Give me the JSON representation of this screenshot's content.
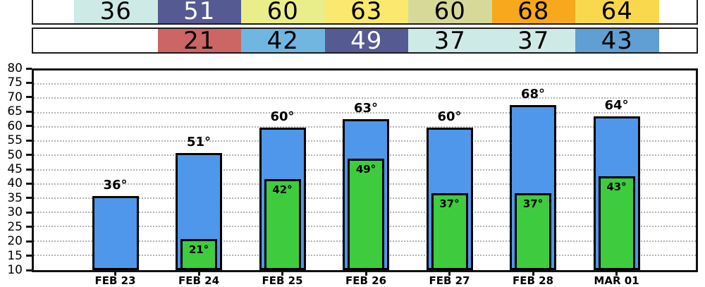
{
  "palette": {
    "high_bar_fill": "#4f97ea",
    "low_bar_fill": "#3ecc3e",
    "bar_border": "#000000",
    "gridline": "#b3b3b3",
    "frame": "#111111"
  },
  "strips": {
    "high": {
      "label": "daily-high-temperatures",
      "start_day": 0,
      "cells": [
        {
          "value": "36",
          "bg": "#cdeae6",
          "fg": "#000000"
        },
        {
          "value": "51",
          "bg": "#565a93",
          "fg": "#ffffff"
        },
        {
          "value": "60",
          "bg": "#e9ee8a",
          "fg": "#000000"
        },
        {
          "value": "63",
          "bg": "#fae96e",
          "fg": "#000000"
        },
        {
          "value": "60",
          "bg": "#d6d998",
          "fg": "#000000"
        },
        {
          "value": "68",
          "bg": "#f8a81c",
          "fg": "#000000"
        },
        {
          "value": "64",
          "bg": "#f9d84e",
          "fg": "#000000"
        }
      ]
    },
    "low": {
      "label": "daily-low-temperatures",
      "start_day": 1,
      "cells": [
        {
          "value": "21",
          "bg": "#cb6665",
          "fg": "#000000"
        },
        {
          "value": "42",
          "bg": "#6fb6e1",
          "fg": "#000000"
        },
        {
          "value": "49",
          "bg": "#565a93",
          "fg": "#ffffff"
        },
        {
          "value": "37",
          "bg": "#cdeae6",
          "fg": "#000000"
        },
        {
          "value": "37",
          "bg": "#cdeae6",
          "fg": "#000000"
        },
        {
          "value": "43",
          "bg": "#5f9fd3",
          "fg": "#000000"
        }
      ]
    }
  },
  "chart_data": {
    "type": "bar",
    "categories": [
      "FEB 23",
      "FEB 24",
      "FEB 25",
      "FEB 26",
      "FEB 27",
      "FEB 28",
      "MAR 01"
    ],
    "series": [
      {
        "name": "high",
        "color": "#4f97ea",
        "values": [
          36,
          51,
          60,
          63,
          60,
          68,
          64
        ]
      },
      {
        "name": "low",
        "color": "#3ecc3e",
        "values": [
          null,
          21,
          42,
          49,
          37,
          37,
          43
        ]
      }
    ],
    "ylim": [
      10,
      80
    ],
    "ytick_step": 5,
    "grid": "horizontal-dotted",
    "legend": "none",
    "bar_label_suffix": "°"
  }
}
